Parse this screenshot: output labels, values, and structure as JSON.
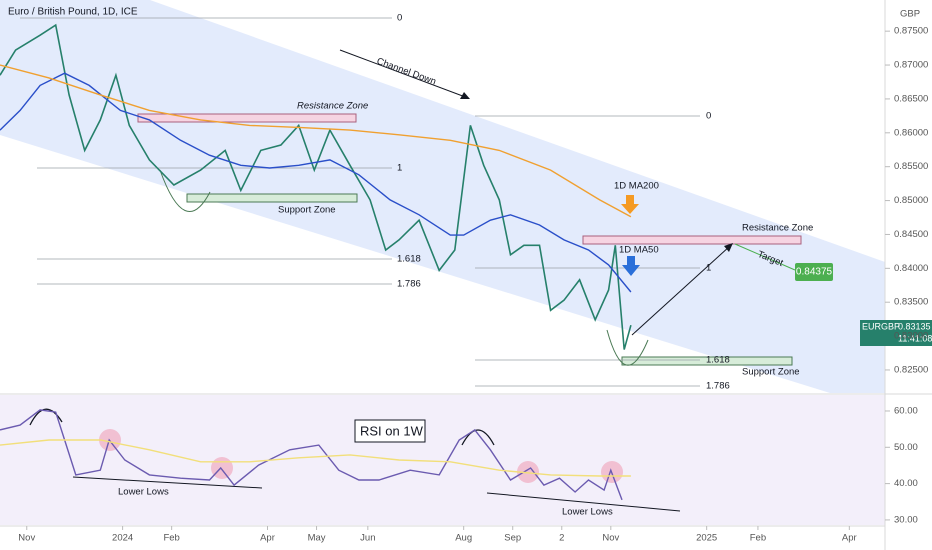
{
  "title": "Euro / British Pound, 1D, ICE",
  "currency": "GBP",
  "symbol": "EURGBP",
  "last_price": 0.83135,
  "countdown": "11:41:08",
  "target_price": 0.84375,
  "annotations": {
    "channel": "Channel Down",
    "resistance_1": "Resistance Zone",
    "support_1": "Support Zone",
    "resistance_2": "Resistance Zone",
    "support_2": "Support Zone",
    "target": "Target",
    "lower_lows_1": "Lower Lows",
    "lower_lows_2": "Lower Lows"
  },
  "fib_labels": [
    "0",
    "1",
    "1.618",
    "1.786",
    "0",
    "1",
    "1.618",
    "1.786"
  ],
  "xticks": [
    {
      "value": 0,
      "label": "Nov"
    },
    {
      "value": 43,
      "label": "2024"
    },
    {
      "value": 65,
      "label": "Feb"
    },
    {
      "value": 108,
      "label": "Apr"
    },
    {
      "value": 130,
      "label": "May"
    },
    {
      "value": 153,
      "label": "Jun"
    },
    {
      "value": 196,
      "label": "Aug"
    },
    {
      "value": 218,
      "label": "Sep"
    },
    {
      "value": 240,
      "label": "2"
    },
    {
      "value": 262,
      "label": "Nov"
    },
    {
      "value": 305,
      "label": "2025"
    },
    {
      "value": 328,
      "label": "Feb"
    },
    {
      "value": 369,
      "label": "Apr"
    }
  ],
  "xlim": [
    -12,
    385
  ],
  "chart_data": [
    {
      "type": "line",
      "ylim": [
        0.8216,
        0.8796
      ],
      "yticks": [
        {
          "value": 0.825,
          "label": "0.82500"
        },
        {
          "value": 0.83,
          "label": "0.83000"
        },
        {
          "value": 0.835,
          "label": "0.83500"
        },
        {
          "value": 0.84,
          "label": "0.84000"
        },
        {
          "value": 0.845,
          "label": "0.84500"
        },
        {
          "value": 0.85,
          "label": "0.85000"
        },
        {
          "value": 0.855,
          "label": "0.85500"
        },
        {
          "value": 0.86,
          "label": "0.86000"
        },
        {
          "value": 0.865,
          "label": "0.86500"
        },
        {
          "value": 0.87,
          "label": "0.87000"
        },
        {
          "value": 0.875,
          "label": "0.87500"
        }
      ],
      "series": [
        {
          "name": "EURGBP",
          "color": "#26806b",
          "x": [
            -12,
            -5,
            6,
            13,
            19,
            26,
            33,
            40,
            46,
            55,
            66,
            78,
            89,
            96,
            105,
            114,
            122,
            129,
            136,
            145,
            154,
            161,
            167,
            176,
            185,
            192,
            199,
            205,
            212,
            217,
            223,
            230,
            235,
            241,
            248,
            255,
            261,
            264,
            268,
            271
          ],
          "values": [
            0.8685,
            0.8722,
            0.8744,
            0.8759,
            0.8656,
            0.8574,
            0.8619,
            0.8685,
            0.8611,
            0.856,
            0.8523,
            0.8545,
            0.8574,
            0.8515,
            0.8574,
            0.8582,
            0.8611,
            0.8545,
            0.8604,
            0.8552,
            0.8501,
            0.8427,
            0.8442,
            0.8471,
            0.8397,
            0.8427,
            0.8611,
            0.8552,
            0.8501,
            0.842,
            0.8434,
            0.8434,
            0.8338,
            0.8353,
            0.8383,
            0.8324,
            0.8368,
            0.8434,
            0.828,
            0.8316
          ]
        },
        {
          "name": "1D MA50",
          "color": "#2a4fc9",
          "x": [
            -12,
            -3,
            6,
            17,
            28,
            42,
            55,
            69,
            82,
            96,
            109,
            122,
            136,
            149,
            163,
            176,
            190,
            196,
            208,
            217,
            230,
            241,
            252,
            261,
            271
          ],
          "values": [
            0.8604,
            0.8633,
            0.867,
            0.8688,
            0.867,
            0.8633,
            0.8619,
            0.8589,
            0.8567,
            0.8552,
            0.8548,
            0.8552,
            0.856,
            0.8538,
            0.8501,
            0.8479,
            0.8449,
            0.8449,
            0.8471,
            0.8479,
            0.8464,
            0.8442,
            0.8427,
            0.8405,
            0.8365
          ]
        },
        {
          "name": "1D MA200",
          "color": "#f0a030",
          "x": [
            -12,
            10,
            33,
            55,
            78,
            100,
            122,
            145,
            167,
            190,
            212,
            235,
            257,
            271
          ],
          "values": [
            0.87,
            0.8681,
            0.8656,
            0.8633,
            0.8619,
            0.8611,
            0.8608,
            0.8604,
            0.8597,
            0.8589,
            0.8574,
            0.8545,
            0.8501,
            0.8476
          ]
        }
      ]
    },
    {
      "type": "line",
      "ylim": [
        28.6,
        64.4
      ],
      "yticks": [
        {
          "value": 30,
          "label": "30.00"
        },
        {
          "value": 40,
          "label": "40.00"
        },
        {
          "value": 50,
          "label": "50.00"
        },
        {
          "value": 60,
          "label": "60.00"
        }
      ],
      "series": [
        {
          "name": "RSI on 1W",
          "color": "#6b5bb0",
          "x": [
            -12,
            -3,
            6,
            13,
            22,
            33,
            37,
            44,
            55,
            69,
            82,
            87,
            93,
            104,
            118,
            131,
            140,
            149,
            158,
            172,
            185,
            194,
            201,
            208,
            217,
            226,
            232,
            239,
            246,
            252,
            259,
            262,
            267
          ],
          "values": [
            54.8,
            56.1,
            60.3,
            59.7,
            42.4,
            43.7,
            52.0,
            46.5,
            42.4,
            41.5,
            41.0,
            44.3,
            39.6,
            45.1,
            49.3,
            50.6,
            43.7,
            41.0,
            41.0,
            43.7,
            42.4,
            52.0,
            54.8,
            49.3,
            41.0,
            44.3,
            39.6,
            41.5,
            37.7,
            41.0,
            38.2,
            43.7,
            35.5
          ]
        },
        {
          "color": "#f2df7a",
          "x": [
            -12,
            10,
            33,
            55,
            78,
            100,
            122,
            145,
            167,
            190,
            212,
            235,
            257,
            271
          ],
          "values": [
            50.6,
            52.0,
            52.0,
            49.3,
            46.0,
            46.0,
            47.1,
            47.9,
            46.5,
            46.0,
            43.7,
            42.4,
            42.1,
            42.1
          ]
        }
      ]
    }
  ]
}
